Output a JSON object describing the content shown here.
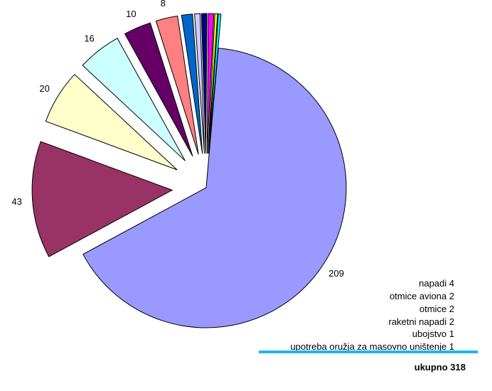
{
  "chart_data": {
    "type": "pie",
    "title": "",
    "slices": [
      {
        "value": 209,
        "label": "209",
        "color": "#9999ff"
      },
      {
        "value": 43,
        "label": "43",
        "color": "#993366"
      },
      {
        "value": 20,
        "label": "20",
        "color": "#ffffcc"
      },
      {
        "value": 16,
        "label": "16",
        "color": "#ccffff"
      },
      {
        "value": 10,
        "label": "10",
        "color": "#660066"
      },
      {
        "value": 8,
        "label": "8",
        "color": "#ff8080"
      },
      {
        "value": 4,
        "label": "napadi",
        "color": "#0066cc"
      },
      {
        "value": 2,
        "label": "otmice aviona",
        "color": "#ccccff"
      },
      {
        "value": 2,
        "label": "otmice",
        "color": "#000080"
      },
      {
        "value": 2,
        "label": "raketni napadi",
        "color": "#ff00ff"
      },
      {
        "value": 1,
        "label": "ubojstvo",
        "color": "#ffff00"
      },
      {
        "value": 1,
        "label": "upotreba oružja za masovno uništenje",
        "color": "#00ffff"
      }
    ],
    "legend": [
      {
        "text": "napadi 4"
      },
      {
        "text": "otmice aviona 2"
      },
      {
        "text": "otmice 2"
      },
      {
        "text": "raketni napadi 2"
      },
      {
        "text": "ubojstvo 1"
      },
      {
        "text": "upotreba oružja za masovno uništenje 1"
      }
    ],
    "total_text": "ukupno 318"
  }
}
